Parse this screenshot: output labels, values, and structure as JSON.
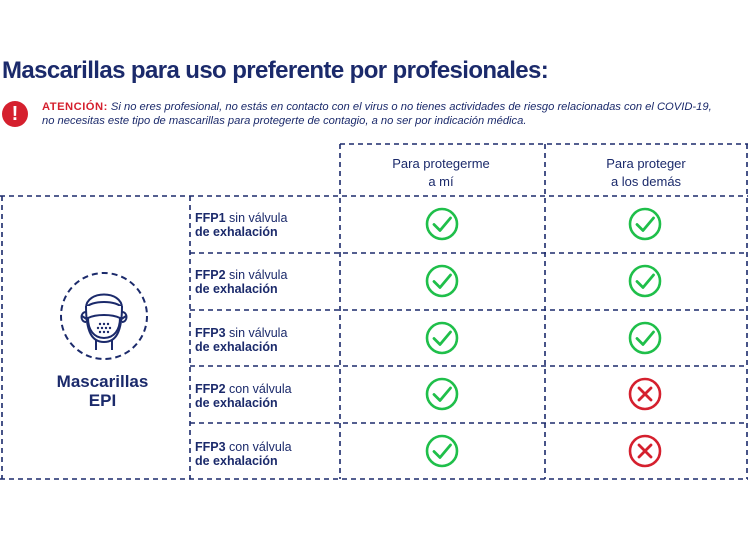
{
  "title": "Mascarillas para uso preferente por profesionales:",
  "warning": {
    "icon": "exclamation-icon",
    "label": "ATENCIÓN:",
    "line1": " Si no eres profesional, no estás en contacto con el virus o no tienes actividades de riesgo relacionadas con el COVID-19,",
    "line2": "no necesitas este tipo de mascarillas para protegerte de contagio, a no ser por indicación médica."
  },
  "columns": [
    {
      "line1": "Para protegerme",
      "line2": "a mí"
    },
    {
      "line1": "Para proteger",
      "line2": "a los demás"
    }
  ],
  "group": {
    "line1": "Mascarillas",
    "line2": "EPI",
    "icon": "face-mask-icon"
  },
  "rows": [
    {
      "type": "FFP1",
      "valve": " sin válvula",
      "line2": "de exhalación",
      "protect_self": true,
      "protect_others": true
    },
    {
      "type": "FFP2",
      "valve": " sin válvula",
      "line2": "de exhalación",
      "protect_self": true,
      "protect_others": true
    },
    {
      "type": "FFP3",
      "valve": " sin válvula",
      "line2": "de exhalación",
      "protect_self": true,
      "protect_others": true
    },
    {
      "type": "FFP2",
      "valve": " con válvula",
      "line2": "de exhalación",
      "protect_self": true,
      "protect_others": false
    },
    {
      "type": "FFP3",
      "valve": " con válvula",
      "line2": "de exhalación",
      "protect_self": true,
      "protect_others": false
    }
  ],
  "colors": {
    "navy": "#1b2a6b",
    "check": "#1fbf4a",
    "cross": "#d5202e"
  }
}
